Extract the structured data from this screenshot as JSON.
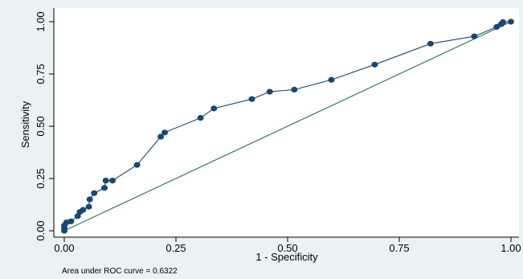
{
  "chart_data": {
    "type": "line",
    "xlabel": "1 - Specificity",
    "ylabel": "Sensitivity",
    "xlim": [
      0,
      1
    ],
    "ylim": [
      0,
      1
    ],
    "x_ticks": [
      "0.00",
      "0.25",
      "0.50",
      "0.75",
      "1.00"
    ],
    "y_ticks": [
      "0.00",
      "0.25",
      "0.50",
      "0.75",
      "1.00"
    ],
    "grid": false,
    "annotation": "Area under ROC curve = 0.6322",
    "colors": {
      "background": "#eaf2f3",
      "plot_background": "#ffffff",
      "roc_curve": "#1a476f",
      "reference_line": "#2d6d66"
    },
    "series": [
      {
        "values": [
          {
            "x": 0.0,
            "y": 0.0
          },
          {
            "x": 0.0,
            "y": 0.012
          },
          {
            "x": 0.0,
            "y": 0.025
          },
          {
            "x": 0.005,
            "y": 0.04
          },
          {
            "x": 0.015,
            "y": 0.045
          },
          {
            "x": 0.03,
            "y": 0.07
          },
          {
            "x": 0.035,
            "y": 0.09
          },
          {
            "x": 0.042,
            "y": 0.1
          },
          {
            "x": 0.055,
            "y": 0.115
          },
          {
            "x": 0.057,
            "y": 0.15
          },
          {
            "x": 0.067,
            "y": 0.18
          },
          {
            "x": 0.09,
            "y": 0.205
          },
          {
            "x": 0.093,
            "y": 0.24
          },
          {
            "x": 0.108,
            "y": 0.24
          },
          {
            "x": 0.163,
            "y": 0.315
          },
          {
            "x": 0.216,
            "y": 0.45
          },
          {
            "x": 0.225,
            "y": 0.47
          },
          {
            "x": 0.305,
            "y": 0.54
          },
          {
            "x": 0.335,
            "y": 0.585
          },
          {
            "x": 0.42,
            "y": 0.63
          },
          {
            "x": 0.46,
            "y": 0.665
          },
          {
            "x": 0.515,
            "y": 0.675
          },
          {
            "x": 0.598,
            "y": 0.722
          },
          {
            "x": 0.695,
            "y": 0.795
          },
          {
            "x": 0.82,
            "y": 0.895
          },
          {
            "x": 0.918,
            "y": 0.93
          },
          {
            "x": 0.968,
            "y": 0.975
          },
          {
            "x": 0.978,
            "y": 0.988
          },
          {
            "x": 0.982,
            "y": 0.998
          },
          {
            "x": 1.0,
            "y": 1.0
          }
        ]
      },
      {
        "values": [
          {
            "x": 0,
            "y": 0
          },
          {
            "x": 1,
            "y": 1
          }
        ]
      }
    ]
  }
}
